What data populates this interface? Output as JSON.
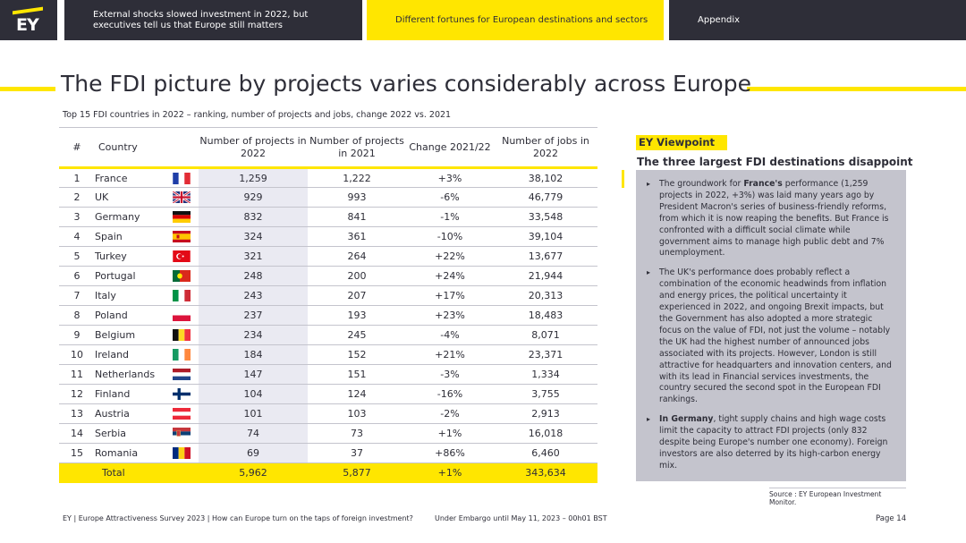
{
  "logo": {
    "text": "EY"
  },
  "nav": {
    "item1": "External shocks slowed investment in 2022, but executives tell us that Europe still matters",
    "item2": "Different fortunes for European destinations and sectors",
    "item3": "Appendix"
  },
  "page": {
    "title": "The FDI picture by projects varies considerably across Europe",
    "subtitle": "Top 15 FDI countries in 2022 – ranking, number of projects and jobs, change 2022 vs. 2021"
  },
  "table": {
    "headers": {
      "rank": "#",
      "country": "Country",
      "projects_2022": "Number of projects in 2022",
      "projects_2021": "Number of projects in 2021",
      "change": "Change 2021/22",
      "jobs": "Number of jobs in 2022"
    },
    "rows": [
      {
        "rank": "1",
        "country": "France",
        "flag": "france-flag",
        "p22": "1,259",
        "p21": "1,222",
        "chg": "+3%",
        "jobs": "38,102"
      },
      {
        "rank": "2",
        "country": "UK",
        "flag": "uk-flag",
        "p22": "929",
        "p21": "993",
        "chg": "-6%",
        "jobs": "46,779"
      },
      {
        "rank": "3",
        "country": "Germany",
        "flag": "germany-flag",
        "p22": "832",
        "p21": "841",
        "chg": "-1%",
        "jobs": "33,548"
      },
      {
        "rank": "4",
        "country": "Spain",
        "flag": "spain-flag",
        "p22": "324",
        "p21": "361",
        "chg": "-10%",
        "jobs": "39,104"
      },
      {
        "rank": "5",
        "country": "Turkey",
        "flag": "turkey-flag",
        "p22": "321",
        "p21": "264",
        "chg": "+22%",
        "jobs": "13,677"
      },
      {
        "rank": "6",
        "country": "Portugal",
        "flag": "portugal-flag",
        "p22": "248",
        "p21": "200",
        "chg": "+24%",
        "jobs": "21,944"
      },
      {
        "rank": "7",
        "country": "Italy",
        "flag": "italy-flag",
        "p22": "243",
        "p21": "207",
        "chg": "+17%",
        "jobs": "20,313"
      },
      {
        "rank": "8",
        "country": "Poland",
        "flag": "poland-flag",
        "p22": "237",
        "p21": "193",
        "chg": "+23%",
        "jobs": "18,483"
      },
      {
        "rank": "9",
        "country": "Belgium",
        "flag": "belgium-flag",
        "p22": "234",
        "p21": "245",
        "chg": "-4%",
        "jobs": "8,071"
      },
      {
        "rank": "10",
        "country": "Ireland",
        "flag": "ireland-flag",
        "p22": "184",
        "p21": "152",
        "chg": "+21%",
        "jobs": "23,371"
      },
      {
        "rank": "11",
        "country": "Netherlands",
        "flag": "netherlands-flag",
        "p22": "147",
        "p21": "151",
        "chg": "-3%",
        "jobs": "1,334"
      },
      {
        "rank": "12",
        "country": "Finland",
        "flag": "finland-flag",
        "p22": "104",
        "p21": "124",
        "chg": "-16%",
        "jobs": "3,755"
      },
      {
        "rank": "13",
        "country": "Austria",
        "flag": "austria-flag",
        "p22": "101",
        "p21": "103",
        "chg": "-2%",
        "jobs": "2,913"
      },
      {
        "rank": "14",
        "country": "Serbia",
        "flag": "serbia-flag",
        "p22": "74",
        "p21": "73",
        "chg": "+1%",
        "jobs": "16,018"
      },
      {
        "rank": "15",
        "country": "Romania",
        "flag": "romania-flag",
        "p22": "69",
        "p21": "37",
        "chg": "+86%",
        "jobs": "6,460"
      }
    ],
    "total": {
      "label": "Total",
      "p22": "5,962",
      "p21": "5,877",
      "chg": "+1%",
      "jobs": "343,634"
    }
  },
  "viewpoint": {
    "label": "EY Viewpoint",
    "heading": "The three largest FDI destinations disappoint",
    "bullets": [
      {
        "bold_prefix": "",
        "pre": "The groundwork for ",
        "bold": "France's",
        "rest": " performance (1,259 projects in 2022, +3%) was laid many years ago by President Macron's series of business-friendly reforms, from which it is now reaping the benefits. But France is confronted with a difficult social climate while government aims to manage high public debt and 7% unemployment."
      },
      {
        "bold_prefix": "",
        "pre": "The UK's performance does probably reflect a combination of the economic headwinds from inflation and energy prices, the political uncertainty it experienced in 2022, and ongoing Brexit impacts, but the Government has also adopted a more strategic focus on the value of FDI, not just the volume – notably the UK had the highest number of announced jobs associated with its projects. However, London is still attractive for headquarters and innovation centers, and with its lead in Financial services investments, the country secured the second spot in the European FDI rankings.",
        "bold": "",
        "rest": ""
      },
      {
        "bold_prefix": "In Germany",
        "pre": "",
        "bold": "",
        "rest": ", tight supply chains and high wage costs limit the capacity to attract FDI projects (only 832 despite being Europe's number one economy). Foreign investors are also deterred by its high-carbon energy mix."
      }
    ]
  },
  "source": "Source : EY European Investment Monitor.",
  "footer": {
    "left": "EY | Europe Attractiveness Survey 2023 | How can Europe turn on the taps of foreign investment?",
    "center": "Under Embargo until May 11, 2023 – 00h01 BST",
    "page": "Page 14"
  },
  "colors": {
    "accent": "#ffe600",
    "dark": "#2e2e38",
    "grey": "#c4c4cd"
  }
}
